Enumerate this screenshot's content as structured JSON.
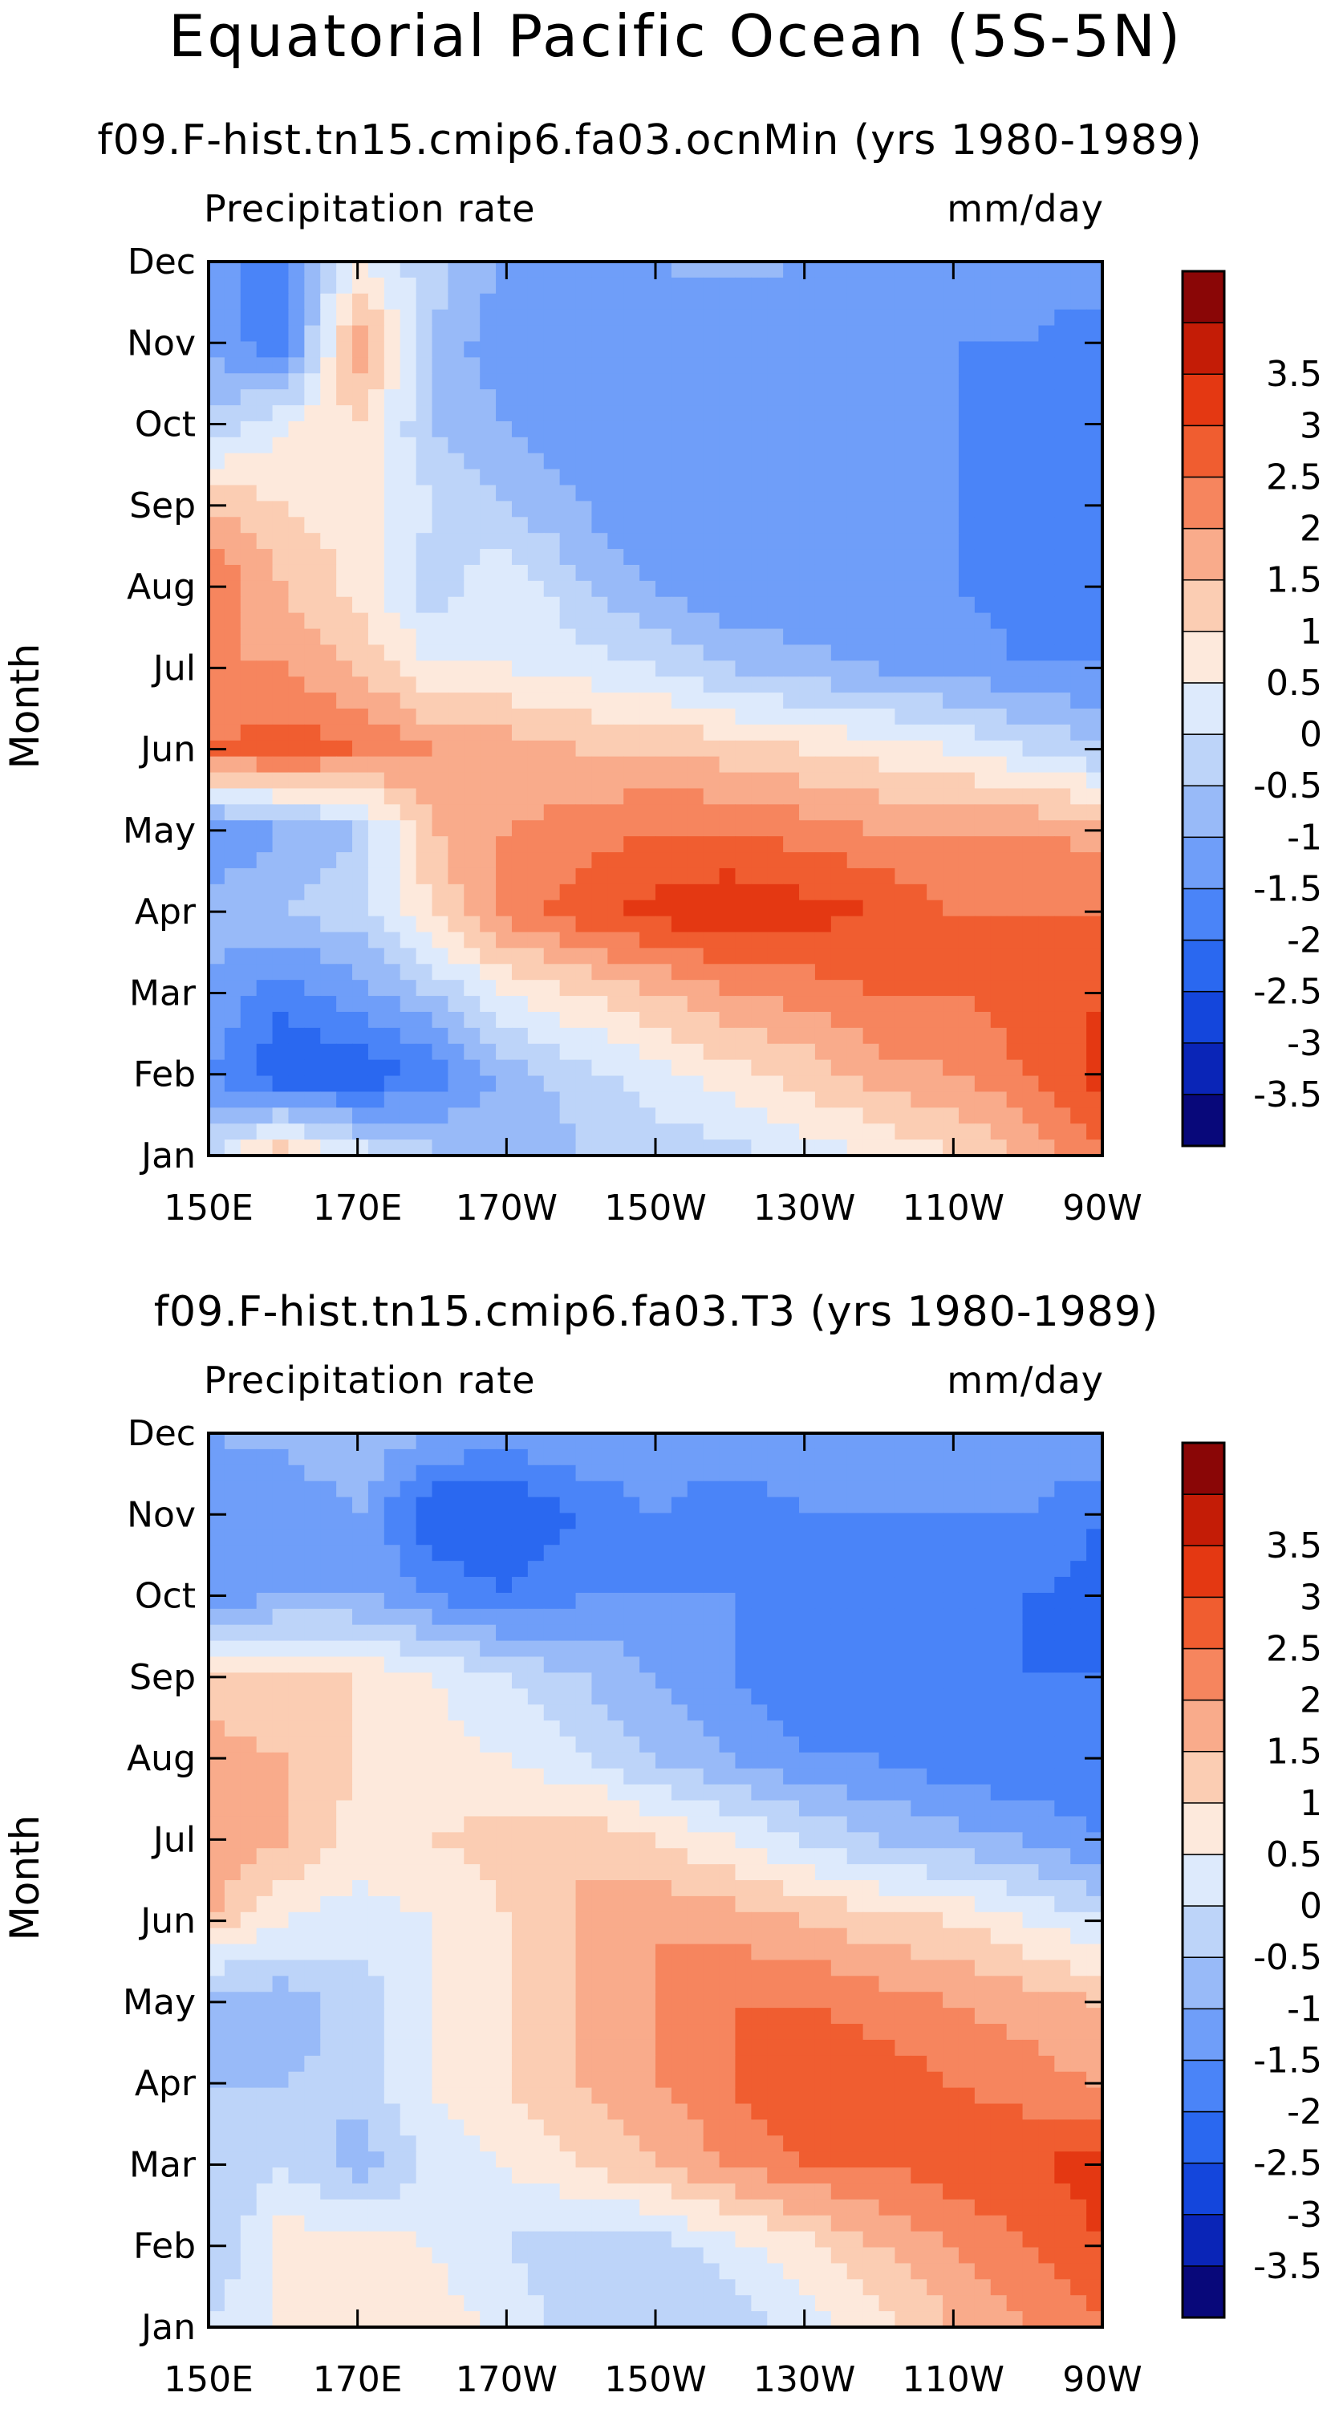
{
  "title": "Equatorial Pacific Ocean (5S-5N)",
  "colors": [
    "#08087a",
    "#0a25b7",
    "#1446dc",
    "#2a68f0",
    "#4a84f8",
    "#6f9ef9",
    "#98baf8",
    "#bdd4f9",
    "#ddeafc",
    "#fde9dc",
    "#fbcdb3",
    "#f9ab8b",
    "#f6855e",
    "#f05d30",
    "#e43812",
    "#c41c06",
    "#8a0606"
  ],
  "colorbar": {
    "levels": [
      -3.5,
      -3,
      -2.5,
      -2,
      -1.5,
      -1,
      -0.5,
      0,
      0.5,
      1,
      1.5,
      2,
      2.5,
      3,
      3.5
    ],
    "labels": [
      "-3.5",
      "-3",
      "-2.5",
      "-2",
      "-1.5",
      "-1",
      "-0.5",
      "0",
      "0.5",
      "1",
      "1.5",
      "2",
      "2.5",
      "3",
      "3.5"
    ]
  },
  "chart_data": [
    {
      "type": "heatmap",
      "title": "f09.F-hist.tn15.cmip6.fa03.ocnMin (yrs 1980-1989)",
      "left_label": "Precipitation rate",
      "right_label": "mm/day",
      "ylabel": "Month",
      "x_ticks": [
        "150E",
        "170E",
        "170W",
        "150W",
        "130W",
        "110W",
        "90W"
      ],
      "x_values": [
        150,
        170,
        190,
        210,
        230,
        250,
        270
      ],
      "months": [
        "Jan",
        "Feb",
        "Mar",
        "Apr",
        "May",
        "Jun",
        "Jul",
        "Aug",
        "Sep",
        "Oct",
        "Nov",
        "Dec"
      ],
      "lon_grid": [
        150,
        160,
        170,
        180,
        190,
        200,
        210,
        220,
        230,
        240,
        250,
        260,
        270
      ],
      "values": [
        [
          0.0,
          1.5,
          0.3,
          -0.3,
          -1.0,
          -0.5,
          -0.3,
          -0.2,
          0.2,
          0.5,
          1.0,
          1.5,
          2.5
        ],
        [
          -1.5,
          -2.5,
          -2.5,
          -1.8,
          -0.8,
          -0.2,
          0.3,
          0.8,
          1.2,
          1.8,
          2.0,
          2.5,
          3.2
        ],
        [
          -1.0,
          -1.8,
          -1.2,
          -0.5,
          0.5,
          1.0,
          1.5,
          2.0,
          2.2,
          2.5,
          2.5,
          2.8,
          3.0
        ],
        [
          -0.8,
          -0.5,
          -0.2,
          1.0,
          2.2,
          2.8,
          3.2,
          3.4,
          3.2,
          3.0,
          2.5,
          2.5,
          2.5
        ],
        [
          -1.5,
          -1.0,
          -0.5,
          1.5,
          2.0,
          2.2,
          2.5,
          2.5,
          2.3,
          2.0,
          2.0,
          2.0,
          1.8
        ],
        [
          2.5,
          2.8,
          2.5,
          2.0,
          1.8,
          1.5,
          1.5,
          1.2,
          1.0,
          0.8,
          0.5,
          0.0,
          -0.5
        ],
        [
          2.0,
          2.0,
          1.5,
          0.5,
          0.5,
          0.3,
          0.0,
          -0.5,
          -0.8,
          -1.0,
          -1.2,
          -1.5,
          -1.5
        ],
        [
          2.5,
          1.5,
          0.8,
          -0.3,
          0.5,
          -0.5,
          -1.0,
          -1.5,
          -1.5,
          -1.5,
          -1.5,
          -1.8,
          -2.0
        ],
        [
          1.5,
          1.0,
          0.8,
          0.0,
          -0.5,
          -1.0,
          -1.5,
          -1.5,
          -1.5,
          -1.5,
          -1.5,
          -2.0,
          -2.0
        ],
        [
          -0.5,
          0.5,
          1.0,
          -0.5,
          -1.0,
          -1.5,
          -1.5,
          -1.5,
          -1.5,
          -1.5,
          -1.5,
          -2.0,
          -2.0
        ],
        [
          -1.0,
          -2.0,
          2.0,
          -0.5,
          -1.5,
          -1.5,
          -1.5,
          -1.5,
          -1.5,
          -1.5,
          -1.5,
          -1.5,
          -2.0
        ],
        [
          -1.5,
          -1.5,
          0.5,
          -0.3,
          -1.0,
          -1.2,
          -1.0,
          -0.8,
          -1.0,
          -1.0,
          -1.0,
          -1.0,
          -1.0
        ]
      ]
    },
    {
      "type": "heatmap",
      "title": "f09.F-hist.tn15.cmip6.fa03.T3 (yrs 1980-1989)",
      "left_label": "Precipitation rate",
      "right_label": "mm/day",
      "ylabel": "Month",
      "x_ticks": [
        "150E",
        "170E",
        "170W",
        "150W",
        "130W",
        "110W",
        "90W"
      ],
      "x_values": [
        150,
        170,
        190,
        210,
        230,
        250,
        270
      ],
      "months": [
        "Jan",
        "Feb",
        "Mar",
        "Apr",
        "May",
        "Jun",
        "Jul",
        "Aug",
        "Sep",
        "Oct",
        "Nov",
        "Dec"
      ],
      "lon_grid": [
        150,
        160,
        170,
        180,
        190,
        200,
        210,
        220,
        230,
        240,
        250,
        260,
        270
      ],
      "values": [
        [
          0.0,
          0.5,
          1.0,
          0.8,
          0.3,
          -0.3,
          -0.5,
          -0.3,
          0.3,
          0.8,
          1.5,
          2.0,
          2.5
        ],
        [
          -0.5,
          0.8,
          0.8,
          0.5,
          0.0,
          -0.3,
          -0.3,
          0.3,
          0.8,
          1.5,
          2.0,
          2.5,
          3.0
        ],
        [
          -0.5,
          0.0,
          -0.8,
          0.2,
          0.5,
          1.0,
          1.5,
          2.0,
          2.5,
          2.5,
          2.8,
          3.0,
          3.2
        ],
        [
          -0.5,
          -0.5,
          -0.3,
          0.5,
          1.0,
          1.5,
          2.0,
          2.5,
          3.0,
          2.8,
          2.5,
          2.2,
          2.0
        ],
        [
          -1.0,
          -0.8,
          -0.3,
          0.5,
          1.0,
          1.5,
          2.0,
          2.5,
          2.5,
          2.2,
          2.0,
          1.8,
          1.5
        ],
        [
          1.5,
          0.5,
          0.2,
          0.5,
          1.0,
          1.5,
          2.0,
          1.8,
          1.5,
          1.2,
          1.0,
          0.5,
          0.0
        ],
        [
          2.0,
          1.5,
          0.8,
          1.0,
          1.2,
          1.5,
          1.0,
          0.5,
          0.0,
          -0.5,
          -0.8,
          -1.0,
          -1.5
        ],
        [
          1.8,
          1.5,
          1.0,
          0.8,
          0.5,
          0.0,
          -0.5,
          -1.0,
          -1.5,
          -1.5,
          -1.8,
          -2.0,
          -2.0
        ],
        [
          1.2,
          1.0,
          1.0,
          0.5,
          0.0,
          -0.5,
          -1.0,
          -1.5,
          -1.8,
          -2.0,
          -2.0,
          -2.0,
          -2.0
        ],
        [
          -1.5,
          -1.0,
          -1.0,
          -1.5,
          -2.0,
          -1.5,
          -1.5,
          -1.5,
          -2.0,
          -2.0,
          -2.0,
          -2.0,
          -2.2
        ],
        [
          -1.5,
          -1.5,
          -1.0,
          -2.5,
          -2.5,
          -2.0,
          -1.5,
          -2.0,
          -1.5,
          -1.5,
          -1.5,
          -1.5,
          -2.0
        ],
        [
          -1.0,
          -0.8,
          -0.5,
          -1.0,
          -1.2,
          -1.0,
          -1.0,
          -1.0,
          -1.0,
          -1.0,
          -1.0,
          -1.0,
          -1.0
        ]
      ]
    }
  ]
}
